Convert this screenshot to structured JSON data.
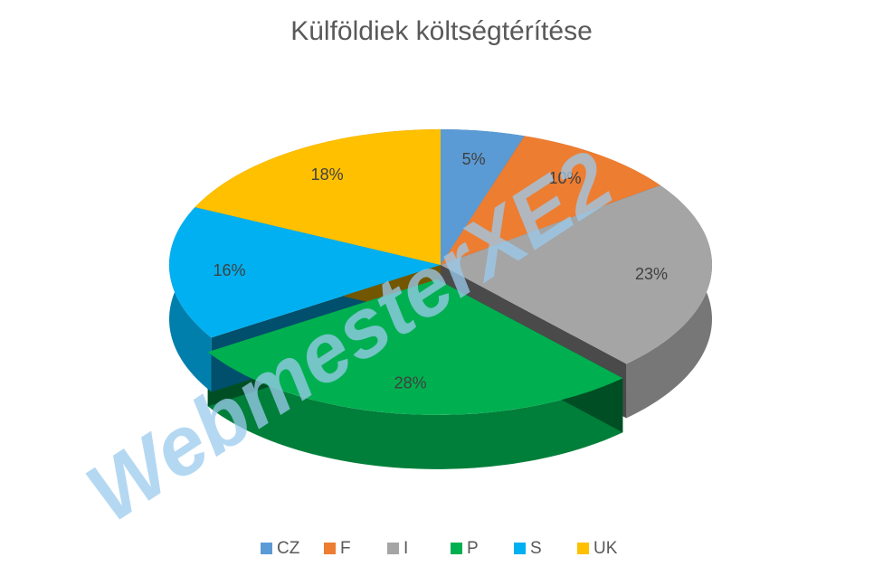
{
  "chart_data": {
    "type": "pie3d",
    "title": "Külföldiek költségtérítése",
    "categories": [
      "CZ",
      "F",
      "I",
      "P",
      "S",
      "UK"
    ],
    "values": [
      5,
      10,
      23,
      28,
      16,
      18
    ],
    "value_labels": [
      "5%",
      "10%",
      "23%",
      "28%",
      "16%",
      "18%"
    ],
    "colors": [
      "#5b9bd5",
      "#ed7d31",
      "#a5a5a5",
      "#00b050",
      "#00b0f0",
      "#ffc000"
    ],
    "exploded": "P",
    "legend": "bottom",
    "watermark": "WebmesterXE2"
  }
}
